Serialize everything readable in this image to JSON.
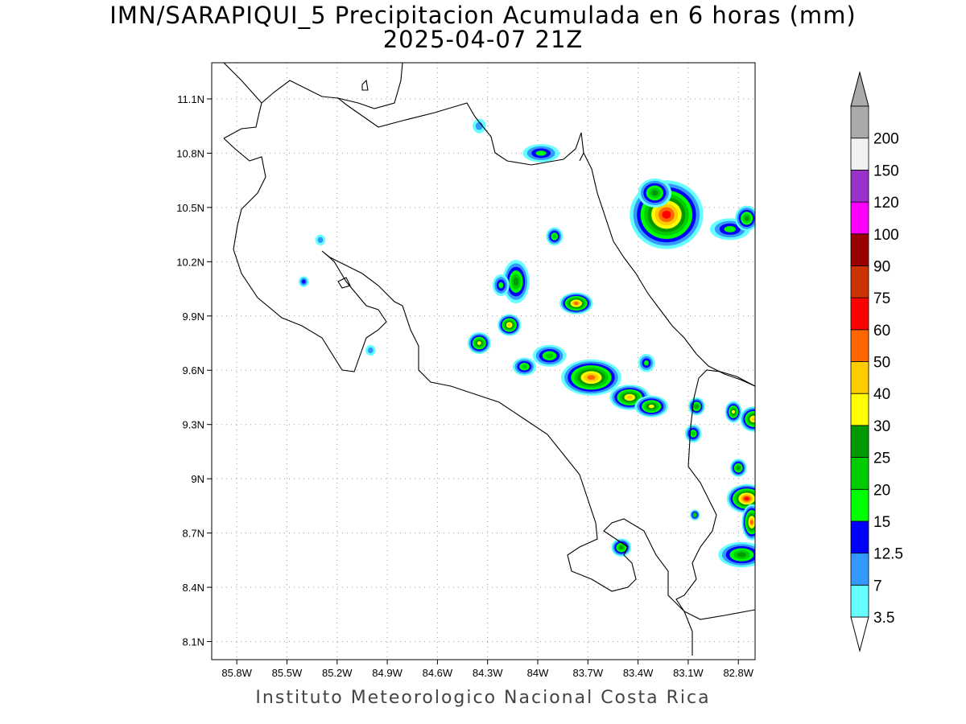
{
  "header": {
    "title_line1": "IMN/SARAPIQUI_5 Precipitacion Acumulada en 6 horas (mm)",
    "title_line2": "2025-04-07 21Z"
  },
  "footer": {
    "credit": "Instituto Meteorologico Nacional Costa Rica"
  },
  "map": {
    "lon_range": [
      -85.95,
      -82.7
    ],
    "lat_range": [
      8.0,
      11.3
    ],
    "lon_ticks": [
      {
        "value": -85.8,
        "label": "85.8W"
      },
      {
        "value": -85.5,
        "label": "85.5W"
      },
      {
        "value": -85.2,
        "label": "85.2W"
      },
      {
        "value": -84.9,
        "label": "84.9W"
      },
      {
        "value": -84.6,
        "label": "84.6W"
      },
      {
        "value": -84.3,
        "label": "84.3W"
      },
      {
        "value": -84.0,
        "label": "84W"
      },
      {
        "value": -83.7,
        "label": "83.7W"
      },
      {
        "value": -83.4,
        "label": "83.4W"
      },
      {
        "value": -83.1,
        "label": "83.1W"
      },
      {
        "value": -82.8,
        "label": "82.8W"
      }
    ],
    "lat_ticks": [
      {
        "value": 11.1,
        "label": "11.1N"
      },
      {
        "value": 10.8,
        "label": "10.8N"
      },
      {
        "value": 10.5,
        "label": "10.5N"
      },
      {
        "value": 10.2,
        "label": "10.2N"
      },
      {
        "value": 9.9,
        "label": "9.9N"
      },
      {
        "value": 9.6,
        "label": "9.6N"
      },
      {
        "value": 9.3,
        "label": "9.3N"
      },
      {
        "value": 9.0,
        "label": "9N"
      },
      {
        "value": 8.7,
        "label": "8.7N"
      },
      {
        "value": 8.4,
        "label": "8.4N"
      },
      {
        "value": 8.1,
        "label": "8.1N"
      }
    ],
    "grid": true,
    "boundary_color": "#000000"
  },
  "legend": {
    "placement": "right",
    "levels": [
      {
        "label": "3.5",
        "color": "#66ffff"
      },
      {
        "label": "7",
        "color": "#3399ff"
      },
      {
        "label": "12.5",
        "color": "#0000ff"
      },
      {
        "label": "15",
        "color": "#00ff00"
      },
      {
        "label": "20",
        "color": "#00cc00"
      },
      {
        "label": "25",
        "color": "#009900"
      },
      {
        "label": "30",
        "color": "#ffff00"
      },
      {
        "label": "40",
        "color": "#ffcc00"
      },
      {
        "label": "50",
        "color": "#ff6600"
      },
      {
        "label": "60",
        "color": "#ff0000"
      },
      {
        "label": "75",
        "color": "#cc3300"
      },
      {
        "label": "90",
        "color": "#990000"
      },
      {
        "label": "100",
        "color": "#ff00ff"
      },
      {
        "label": "120",
        "color": "#9933cc"
      },
      {
        "label": "150",
        "color": "#f2f2f2"
      },
      {
        "label": "200",
        "color": "#aaaaaa"
      }
    ],
    "below_color": "#ffffff",
    "above_color": "#aaaaaa"
  },
  "precipitation_cells": [
    {
      "lon": -83.23,
      "lat": 10.46,
      "rx": 0.22,
      "ry": 0.19,
      "level": 9
    },
    {
      "lon": -83.3,
      "lat": 10.58,
      "rx": 0.1,
      "ry": 0.08,
      "level": 5
    },
    {
      "lon": -82.85,
      "lat": 10.38,
      "rx": 0.12,
      "ry": 0.06,
      "level": 3
    },
    {
      "lon": -82.75,
      "lat": 10.44,
      "rx": 0.07,
      "ry": 0.07,
      "level": 5
    },
    {
      "lon": -83.98,
      "lat": 10.8,
      "rx": 0.11,
      "ry": 0.05,
      "level": 3
    },
    {
      "lon": -84.35,
      "lat": 10.95,
      "rx": 0.04,
      "ry": 0.04,
      "level": 1
    },
    {
      "lon": -83.9,
      "lat": 10.34,
      "rx": 0.05,
      "ry": 0.05,
      "level": 4
    },
    {
      "lon": -84.13,
      "lat": 10.09,
      "rx": 0.08,
      "ry": 0.12,
      "level": 5
    },
    {
      "lon": -84.22,
      "lat": 10.07,
      "rx": 0.05,
      "ry": 0.06,
      "level": 3
    },
    {
      "lon": -83.77,
      "lat": 9.97,
      "rx": 0.1,
      "ry": 0.06,
      "level": 8
    },
    {
      "lon": -84.17,
      "lat": 9.85,
      "rx": 0.07,
      "ry": 0.06,
      "level": 7
    },
    {
      "lon": -84.35,
      "lat": 9.75,
      "rx": 0.07,
      "ry": 0.06,
      "level": 6
    },
    {
      "lon": -83.93,
      "lat": 9.68,
      "rx": 0.1,
      "ry": 0.06,
      "level": 4
    },
    {
      "lon": -83.68,
      "lat": 9.56,
      "rx": 0.18,
      "ry": 0.1,
      "level": 8
    },
    {
      "lon": -84.08,
      "lat": 9.62,
      "rx": 0.07,
      "ry": 0.05,
      "level": 4
    },
    {
      "lon": -83.45,
      "lat": 9.45,
      "rx": 0.12,
      "ry": 0.07,
      "level": 7
    },
    {
      "lon": -83.32,
      "lat": 9.4,
      "rx": 0.1,
      "ry": 0.06,
      "level": 6
    },
    {
      "lon": -83.35,
      "lat": 9.64,
      "rx": 0.05,
      "ry": 0.05,
      "level": 3
    },
    {
      "lon": -83.05,
      "lat": 9.4,
      "rx": 0.05,
      "ry": 0.05,
      "level": 5
    },
    {
      "lon": -83.07,
      "lat": 9.25,
      "rx": 0.05,
      "ry": 0.05,
      "level": 4
    },
    {
      "lon": -82.83,
      "lat": 9.37,
      "rx": 0.05,
      "ry": 0.06,
      "level": 6
    },
    {
      "lon": -82.71,
      "lat": 9.33,
      "rx": 0.08,
      "ry": 0.07,
      "level": 7
    },
    {
      "lon": -82.75,
      "lat": 8.89,
      "rx": 0.12,
      "ry": 0.08,
      "level": 9
    },
    {
      "lon": -82.72,
      "lat": 8.76,
      "rx": 0.06,
      "ry": 0.1,
      "level": 8
    },
    {
      "lon": -82.78,
      "lat": 8.58,
      "rx": 0.14,
      "ry": 0.07,
      "level": 5
    },
    {
      "lon": -82.8,
      "lat": 9.06,
      "rx": 0.05,
      "ry": 0.05,
      "level": 5
    },
    {
      "lon": -83.5,
      "lat": 8.62,
      "rx": 0.06,
      "ry": 0.05,
      "level": 5
    },
    {
      "lon": -83.06,
      "lat": 8.8,
      "rx": 0.03,
      "ry": 0.03,
      "level": 4
    },
    {
      "lon": -85.4,
      "lat": 10.09,
      "rx": 0.03,
      "ry": 0.03,
      "level": 2
    },
    {
      "lon": -85.0,
      "lat": 9.71,
      "rx": 0.03,
      "ry": 0.03,
      "level": 1
    },
    {
      "lon": -85.3,
      "lat": 10.32,
      "rx": 0.03,
      "ry": 0.03,
      "level": 1
    }
  ]
}
